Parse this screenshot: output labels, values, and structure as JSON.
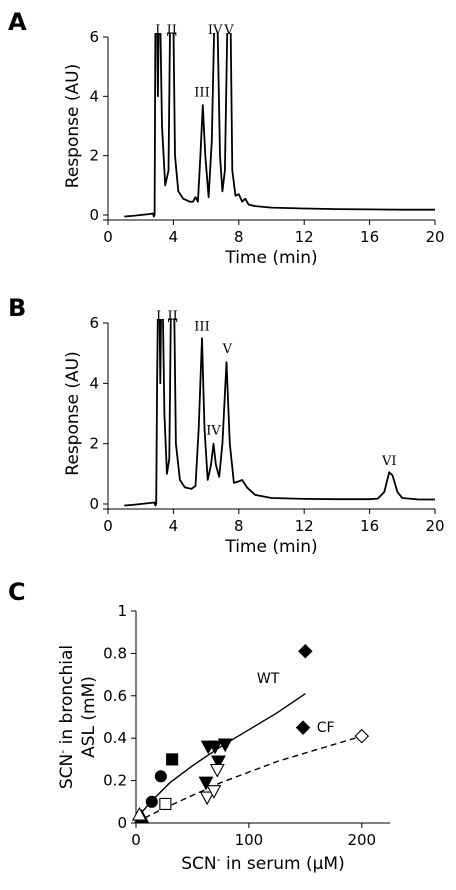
{
  "chart_data": [
    {
      "panel": "A",
      "type": "line",
      "xlabel": "Time (min)",
      "ylabel": "Response (AU)",
      "xlim": [
        0,
        20
      ],
      "ylim": [
        0,
        6
      ],
      "xticks": [
        0,
        4,
        8,
        12,
        16,
        20
      ],
      "yticks": [
        0,
        2,
        4,
        6
      ],
      "trace": [
        [
          1.0,
          -0.05
        ],
        [
          1.5,
          -0.03
        ],
        [
          2.0,
          0.0
        ],
        [
          2.5,
          0.03
        ],
        [
          2.75,
          0.05
        ],
        [
          2.8,
          -0.05
        ],
        [
          2.85,
          0.0
        ],
        [
          2.88,
          4.0
        ],
        [
          2.9,
          6.5
        ],
        [
          3.0,
          6.5
        ],
        [
          3.05,
          4.0
        ],
        [
          3.1,
          6.5
        ],
        [
          3.2,
          6.5
        ],
        [
          3.3,
          3.0
        ],
        [
          3.5,
          1.0
        ],
        [
          3.7,
          1.5
        ],
        [
          3.8,
          6.5
        ],
        [
          4.0,
          6.5
        ],
        [
          4.1,
          2.0
        ],
        [
          4.3,
          0.8
        ],
        [
          4.6,
          0.55
        ],
        [
          5.0,
          0.45
        ],
        [
          5.2,
          0.45
        ],
        [
          5.35,
          0.6
        ],
        [
          5.5,
          0.45
        ],
        [
          5.65,
          2.0
        ],
        [
          5.8,
          3.7
        ],
        [
          5.95,
          2.0
        ],
        [
          6.15,
          0.6
        ],
        [
          6.35,
          2.5
        ],
        [
          6.5,
          6.5
        ],
        [
          6.7,
          6.5
        ],
        [
          6.85,
          2.0
        ],
        [
          7.0,
          0.8
        ],
        [
          7.15,
          1.5
        ],
        [
          7.3,
          6.5
        ],
        [
          7.5,
          6.5
        ],
        [
          7.6,
          1.5
        ],
        [
          7.8,
          0.65
        ],
        [
          8.0,
          0.7
        ],
        [
          8.2,
          0.45
        ],
        [
          8.4,
          0.55
        ],
        [
          8.6,
          0.35
        ],
        [
          9.0,
          0.3
        ],
        [
          10.0,
          0.25
        ],
        [
          12.0,
          0.22
        ],
        [
          14.0,
          0.2
        ],
        [
          16.0,
          0.19
        ],
        [
          18.0,
          0.18
        ],
        [
          20.0,
          0.18
        ]
      ],
      "peaks": [
        {
          "label": "I",
          "x": 3.05,
          "y": 6.1
        },
        {
          "label": "II",
          "x": 3.9,
          "y": 6.1
        },
        {
          "label": "III",
          "x": 5.75,
          "y": 4.0
        },
        {
          "label": "IV",
          "x": 6.55,
          "y": 6.1
        },
        {
          "label": "V",
          "x": 7.4,
          "y": 6.1
        }
      ],
      "bracket": [
        3.65,
        4.15
      ]
    },
    {
      "panel": "B",
      "type": "line",
      "xlabel": "Time (min)",
      "ylabel": "Response (AU)",
      "xlim": [
        0,
        20
      ],
      "ylim": [
        0,
        6
      ],
      "xticks": [
        0,
        4,
        8,
        12,
        16,
        20
      ],
      "yticks": [
        0,
        2,
        4,
        6
      ],
      "trace": [
        [
          1.0,
          -0.05
        ],
        [
          1.5,
          -0.03
        ],
        [
          2.0,
          0.0
        ],
        [
          2.5,
          0.03
        ],
        [
          2.85,
          0.05
        ],
        [
          2.9,
          -0.05
        ],
        [
          2.95,
          0.0
        ],
        [
          3.0,
          4.0
        ],
        [
          3.05,
          6.5
        ],
        [
          3.15,
          6.5
        ],
        [
          3.2,
          4.0
        ],
        [
          3.25,
          6.5
        ],
        [
          3.35,
          6.5
        ],
        [
          3.45,
          3.0
        ],
        [
          3.6,
          1.0
        ],
        [
          3.75,
          1.5
        ],
        [
          3.85,
          6.5
        ],
        [
          4.05,
          6.5
        ],
        [
          4.15,
          2.0
        ],
        [
          4.4,
          0.8
        ],
        [
          4.7,
          0.55
        ],
        [
          5.1,
          0.5
        ],
        [
          5.35,
          0.6
        ],
        [
          5.55,
          2.5
        ],
        [
          5.75,
          5.5
        ],
        [
          5.9,
          2.5
        ],
        [
          6.1,
          0.8
        ],
        [
          6.3,
          1.3
        ],
        [
          6.45,
          2.0
        ],
        [
          6.6,
          1.3
        ],
        [
          6.8,
          0.9
        ],
        [
          7.0,
          2.0
        ],
        [
          7.25,
          4.7
        ],
        [
          7.45,
          2.0
        ],
        [
          7.7,
          0.7
        ],
        [
          8.0,
          0.75
        ],
        [
          8.2,
          0.8
        ],
        [
          8.5,
          0.55
        ],
        [
          9.0,
          0.3
        ],
        [
          10.0,
          0.2
        ],
        [
          12.0,
          0.17
        ],
        [
          14.0,
          0.16
        ],
        [
          16.0,
          0.16
        ],
        [
          16.5,
          0.18
        ],
        [
          16.9,
          0.4
        ],
        [
          17.2,
          1.05
        ],
        [
          17.4,
          0.95
        ],
        [
          17.7,
          0.4
        ],
        [
          18.0,
          0.2
        ],
        [
          19.0,
          0.15
        ],
        [
          20.0,
          0.15
        ]
      ],
      "peaks": [
        {
          "label": "I",
          "x": 3.1,
          "y": 6.1
        },
        {
          "label": "II",
          "x": 3.95,
          "y": 6.1
        },
        {
          "label": "III",
          "x": 5.75,
          "y": 5.75
        },
        {
          "label": "IV",
          "x": 6.45,
          "y": 2.3
        },
        {
          "label": "V",
          "x": 7.3,
          "y": 5.0
        },
        {
          "label": "VI",
          "x": 17.2,
          "y": 1.3
        }
      ],
      "bracket": [
        3.7,
        4.2
      ]
    },
    {
      "panel": "C",
      "type": "scatter",
      "xlabel_parts": [
        "SCN",
        "-",
        " in serum (µM)"
      ],
      "ylabel_line1_parts": [
        "SCN",
        "-",
        " in bronchial"
      ],
      "ylabel_line2": "ASL (mM)",
      "xlim": [
        0,
        225
      ],
      "ylim": [
        0,
        1
      ],
      "xticks": [
        0,
        100,
        200
      ],
      "yticks": [
        0,
        0.2,
        0.4,
        0.6,
        0.8,
        1
      ],
      "ytick_labels": [
        "0",
        "0.2",
        "0.4",
        "0.6",
        "0.8",
        "1"
      ],
      "series": [
        {
          "name": "WT",
          "style": "solid",
          "fit": [
            [
              0,
              0
            ],
            [
              5,
              0.05
            ],
            [
              15,
              0.11
            ],
            [
              30,
              0.19
            ],
            [
              50,
              0.27
            ],
            [
              75,
              0.36
            ],
            [
              100,
              0.44
            ],
            [
              125,
              0.52
            ],
            [
              150,
              0.61
            ]
          ],
          "label_pos": [
            117,
            0.66
          ],
          "points": [
            {
              "shape": "triangle-up",
              "fill": "filled",
              "x": 5,
              "y": 0.03
            },
            {
              "shape": "circle",
              "fill": "filled",
              "x": 14,
              "y": 0.1
            },
            {
              "shape": "circle",
              "fill": "filled",
              "x": 22,
              "y": 0.22
            },
            {
              "shape": "square",
              "fill": "filled",
              "x": 32,
              "y": 0.3
            },
            {
              "shape": "triangle-down",
              "fill": "filled",
              "x": 62,
              "y": 0.19
            },
            {
              "shape": "triangle-down",
              "fill": "filled",
              "x": 64,
              "y": 0.36
            },
            {
              "shape": "triangle-down",
              "fill": "filled",
              "x": 70,
              "y": 0.36
            },
            {
              "shape": "triangle-down",
              "fill": "filled",
              "x": 73,
              "y": 0.29
            },
            {
              "shape": "triangle-down",
              "fill": "filled",
              "x": 79,
              "y": 0.37
            },
            {
              "shape": "diamond",
              "fill": "filled",
              "x": 150,
              "y": 0.81
            },
            {
              "shape": "diamond",
              "fill": "filled",
              "x": 148,
              "y": 0.45
            }
          ]
        },
        {
          "name": "CF",
          "style": "dashed",
          "fit": [
            [
              0,
              0
            ],
            [
              10,
              0.03
            ],
            [
              25,
              0.07
            ],
            [
              50,
              0.13
            ],
            [
              75,
              0.19
            ],
            [
              100,
              0.24
            ],
            [
              125,
              0.29
            ],
            [
              150,
              0.33
            ],
            [
              175,
              0.37
            ],
            [
              200,
              0.41
            ]
          ],
          "label_pos": [
            168,
            0.43
          ],
          "points": [
            {
              "shape": "triangle-up",
              "fill": "open",
              "x": 3,
              "y": 0.04
            },
            {
              "shape": "square",
              "fill": "open",
              "x": 26,
              "y": 0.09
            },
            {
              "shape": "triangle-down",
              "fill": "open",
              "x": 63,
              "y": 0.12
            },
            {
              "shape": "triangle-down",
              "fill": "open",
              "x": 69,
              "y": 0.15
            },
            {
              "shape": "triangle-down",
              "fill": "open",
              "x": 72,
              "y": 0.25
            },
            {
              "shape": "diamond",
              "fill": "open",
              "x": 200,
              "y": 0.41
            }
          ]
        }
      ]
    }
  ]
}
